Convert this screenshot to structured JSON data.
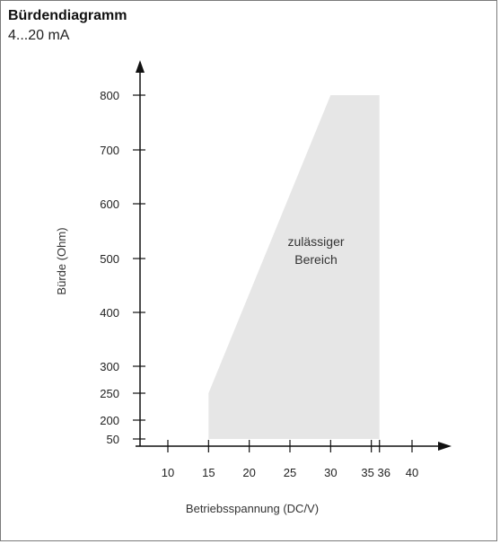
{
  "title": "Bürdendiagramm",
  "subtitle": "4...20 mA",
  "chart_data": {
    "type": "area",
    "title": "Bürdendiagramm",
    "subtitle": "4...20 mA",
    "xlabel": "Betriebsspannung (DC/V)",
    "ylabel": "Bürde (Ohm)",
    "x_ticks": [
      10,
      15,
      20,
      25,
      30,
      35,
      36,
      40
    ],
    "y_ticks": [
      50,
      200,
      250,
      300,
      400,
      500,
      600,
      700,
      800
    ],
    "region": {
      "label_line1": "zulässiger",
      "label_line2": "Bereich",
      "color": "#e6e6e6",
      "points": [
        {
          "x": 15,
          "y": 50
        },
        {
          "x": 15,
          "y": 250
        },
        {
          "x": 30,
          "y": 800
        },
        {
          "x": 36,
          "y": 800
        },
        {
          "x": 36,
          "y": 50
        }
      ]
    }
  }
}
